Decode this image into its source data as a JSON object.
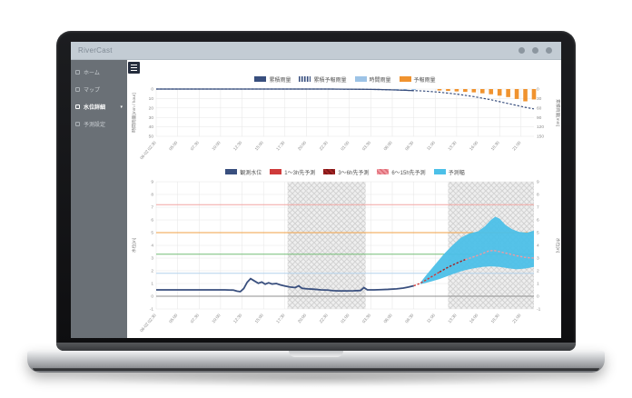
{
  "app": {
    "title": "RiverCast",
    "header_icons": [
      {
        "name": "user-icon"
      },
      {
        "name": "bell-icon"
      },
      {
        "name": "gear-icon"
      }
    ]
  },
  "sidebar": {
    "items": [
      {
        "label": "ホーム",
        "icon": "home-icon",
        "selected": false
      },
      {
        "label": "マップ",
        "icon": "map-icon",
        "selected": false
      },
      {
        "label": "水位詳細",
        "icon": "gauge-icon",
        "selected": true,
        "caret": "▾"
      },
      {
        "label": "予測設定",
        "icon": "wrench-icon",
        "selected": false
      }
    ]
  },
  "toolbar": {
    "menu_icon": "hamburger-icon"
  },
  "chart_data": [
    {
      "type": "bar",
      "name": "rainfall-chart",
      "x_domain": [
        0,
        44
      ],
      "x_tick_hours": [
        0,
        2.5,
        5,
        7.5,
        10,
        12.5,
        15,
        17.5,
        20,
        22.5,
        25,
        27.5,
        30,
        32.5,
        35,
        37.5,
        40,
        42.5
      ],
      "x_tick_labels": [
        "06-02 02:30",
        "05:00",
        "07:30",
        "10:00",
        "12:30",
        "15:00",
        "17:30",
        "20:00",
        "22:30",
        "01:00",
        "03:30",
        "06:00",
        "08:30",
        "11:00",
        "13:30",
        "16:00",
        "18:30",
        "21:00"
      ],
      "left_axis": {
        "label": "時間雨量[mm / hour]",
        "min": 0,
        "max": 50,
        "ticks": [
          0,
          10,
          20,
          30,
          40,
          50
        ],
        "inverted": true
      },
      "right_axis": {
        "label": "累積雨量[mm]",
        "min": 0,
        "max": 150,
        "ticks": [
          0,
          30,
          60,
          90,
          120,
          150
        ],
        "inverted": true
      },
      "legend": [
        {
          "label": "累積雨量",
          "color": "#394f7e",
          "pattern": "solid"
        },
        {
          "label": "累積予報雨量",
          "color": "#394f7e",
          "pattern": "dots"
        },
        {
          "label": "時間雨量",
          "color": "#9dc3e6",
          "pattern": "solid"
        },
        {
          "label": "予報雨量",
          "color": "#f0932f",
          "pattern": "solid"
        }
      ],
      "series": [
        {
          "name": "時間雨量",
          "kind": "bars",
          "axis": "left",
          "color": "#9dc3e6",
          "points": [
            [
              21,
              0.3
            ],
            [
              22,
              0.4
            ],
            [
              23,
              0.5
            ],
            [
              24,
              0.6
            ],
            [
              25,
              0.8
            ],
            [
              26,
              0.8
            ],
            [
              27,
              1.0
            ],
            [
              28,
              1.2
            ],
            [
              29,
              1.2
            ],
            [
              30,
              1.0
            ]
          ]
        },
        {
          "name": "予報雨量",
          "kind": "bars",
          "axis": "left",
          "color": "#f0932f",
          "points": [
            [
              33,
              1.5
            ],
            [
              34,
              2
            ],
            [
              35,
              2.5
            ],
            [
              36,
              3
            ],
            [
              37,
              3.5
            ],
            [
              38,
              4.5
            ],
            [
              39,
              5.5
            ],
            [
              40,
              7
            ],
            [
              41,
              8.5
            ],
            [
              42,
              10.5
            ],
            [
              43,
              13
            ],
            [
              44,
              11
            ]
          ]
        },
        {
          "name": "累積雨量",
          "kind": "line",
          "axis": "right",
          "style": "solid",
          "width": 1.2,
          "color": "#394f7e",
          "points": [
            [
              0,
              0
            ],
            [
              20,
              0
            ],
            [
              22,
              0.3
            ],
            [
              24,
              0.8
            ],
            [
              26,
              1.5
            ],
            [
              28,
              3
            ],
            [
              30,
              5
            ]
          ]
        },
        {
          "name": "累積予報雨量",
          "kind": "line",
          "axis": "right",
          "style": "dashed",
          "width": 1.2,
          "color": "#394f7e",
          "points": [
            [
              0,
              0
            ],
            [
              20,
              0
            ],
            [
              22,
              0.3
            ],
            [
              24,
              0.8
            ],
            [
              26,
              1.5
            ],
            [
              28,
              3
            ],
            [
              30,
              5
            ],
            [
              31,
              6
            ],
            [
              32,
              8
            ],
            [
              33,
              10
            ],
            [
              34,
              13
            ],
            [
              35,
              16
            ],
            [
              36,
              20
            ],
            [
              37,
              24
            ],
            [
              38,
              29
            ],
            [
              39,
              34
            ],
            [
              40,
              40
            ],
            [
              41,
              46
            ],
            [
              42,
              52
            ],
            [
              43,
              58
            ],
            [
              44,
              63
            ]
          ]
        }
      ]
    },
    {
      "type": "line",
      "name": "water-level-chart",
      "x_domain": [
        0,
        44
      ],
      "x_tick_hours": [
        0,
        2.5,
        5,
        7.5,
        10,
        12.5,
        15,
        17.5,
        20,
        22.5,
        25,
        27.5,
        30,
        32.5,
        35,
        37.5,
        40,
        42.5
      ],
      "x_tick_labels": [
        "06-02 02:30",
        "05:00",
        "07:30",
        "10:00",
        "12:30",
        "15:00",
        "17:30",
        "20:00",
        "22:30",
        "01:00",
        "03:30",
        "06:00",
        "08:30",
        "11:00",
        "13:30",
        "16:00",
        "18:30",
        "21:00"
      ],
      "left_axis": {
        "label": "水位[m]",
        "min": -1,
        "max": 9,
        "ticks": [
          -1,
          0,
          1,
          2,
          3,
          4,
          5,
          6,
          7,
          8,
          9
        ],
        "inverted": false
      },
      "right_axis": {
        "label": "水位[m]",
        "min": -1,
        "max": 9,
        "ticks": [
          -1,
          0,
          1,
          2,
          3,
          4,
          5,
          6,
          7,
          8,
          9
        ],
        "inverted": false
      },
      "bands": [
        [
          15.3,
          24.4
        ],
        [
          34,
          44
        ]
      ],
      "ref_lines": [
        {
          "value": 7.2,
          "color": "#f2a6a2"
        },
        {
          "value": 5.0,
          "color": "#f2a145"
        },
        {
          "value": 3.3,
          "color": "#74bd77"
        },
        {
          "value": 1.8,
          "color": "#b3d2ec"
        },
        {
          "value": 0,
          "color": "#8f8f8f"
        }
      ],
      "legend": [
        {
          "label": "観測水位",
          "color": "#394f7e",
          "pattern": "solid"
        },
        {
          "label": "1〜3h先予測",
          "color": "#cf3b3b",
          "pattern": "solid"
        },
        {
          "label": "3〜6h先予測",
          "color": "#a32424",
          "pattern": "hatch",
          "color2": "#7c1616"
        },
        {
          "label": "6〜15h先予測",
          "color": "#f09aa2",
          "pattern": "hatch",
          "color2": "#e06e79"
        },
        {
          "label": "予測幅",
          "color": "#4cc0e8",
          "pattern": "solid"
        }
      ],
      "series": [
        {
          "name": "予測幅",
          "kind": "area",
          "color": "#4cc0e8",
          "upper": [
            [
              30.8,
              1.1
            ],
            [
              31.5,
              1.7
            ],
            [
              32.5,
              2.5
            ],
            [
              33.5,
              3.3
            ],
            [
              34.5,
              4.0
            ],
            [
              35.5,
              4.6
            ],
            [
              36.5,
              4.95
            ],
            [
              37.5,
              5.1
            ],
            [
              38.3,
              5.5
            ],
            [
              39,
              6.0
            ],
            [
              39.5,
              6.25
            ],
            [
              40,
              6.1
            ],
            [
              40.7,
              5.6
            ],
            [
              41.5,
              5.25
            ],
            [
              42.3,
              5.05
            ],
            [
              43.2,
              5.0
            ],
            [
              44,
              5.15
            ]
          ],
          "lower": [
            [
              30.8,
              0.95
            ],
            [
              32,
              1.15
            ],
            [
              33,
              1.35
            ],
            [
              34,
              1.6
            ],
            [
              35,
              1.85
            ],
            [
              36,
              2.05
            ],
            [
              37,
              2.2
            ],
            [
              38,
              2.3
            ],
            [
              39,
              2.35
            ],
            [
              40,
              2.3
            ],
            [
              41,
              2.2
            ],
            [
              42,
              2.12
            ],
            [
              43,
              2.18
            ],
            [
              44,
              2.3
            ]
          ]
        },
        {
          "name": "観測水位",
          "kind": "line",
          "axis": "left",
          "style": "solid",
          "width": 1.8,
          "color": "#394f7e",
          "points": [
            [
              0,
              0.5
            ],
            [
              4,
              0.5
            ],
            [
              8,
              0.5
            ],
            [
              9,
              0.48
            ],
            [
              9.4,
              0.4
            ],
            [
              9.8,
              0.36
            ],
            [
              10.2,
              0.6
            ],
            [
              10.6,
              1.1
            ],
            [
              11,
              1.38
            ],
            [
              11.4,
              1.22
            ],
            [
              11.9,
              1.02
            ],
            [
              12.3,
              1.12
            ],
            [
              12.7,
              0.95
            ],
            [
              13.1,
              1.06
            ],
            [
              13.5,
              0.96
            ],
            [
              14,
              1.0
            ],
            [
              14.5,
              0.88
            ],
            [
              15,
              0.8
            ],
            [
              15.6,
              0.72
            ],
            [
              16.2,
              0.68
            ],
            [
              16.6,
              0.82
            ],
            [
              17,
              0.62
            ],
            [
              17.6,
              0.58
            ],
            [
              18.4,
              0.55
            ],
            [
              19.2,
              0.5
            ],
            [
              20,
              0.48
            ],
            [
              20.6,
              0.44
            ],
            [
              21.2,
              0.42
            ],
            [
              22,
              0.42
            ],
            [
              23,
              0.43
            ],
            [
              23.8,
              0.45
            ],
            [
              24.2,
              0.68
            ],
            [
              24.6,
              0.5
            ],
            [
              25.4,
              0.5
            ],
            [
              26.2,
              0.52
            ],
            [
              27,
              0.54
            ],
            [
              28,
              0.58
            ],
            [
              28.8,
              0.64
            ],
            [
              29.4,
              0.72
            ],
            [
              30,
              0.82
            ]
          ]
        },
        {
          "name": "1〜3h先予測",
          "kind": "line",
          "axis": "left",
          "style": "dashed",
          "width": 1.4,
          "color": "#cf3b3b",
          "points": [
            [
              30,
              0.82
            ],
            [
              30.7,
              1.0
            ],
            [
              31.5,
              1.3
            ],
            [
              32.3,
              1.62
            ],
            [
              33,
              1.9
            ]
          ]
        },
        {
          "name": "3〜6h先予測",
          "kind": "line",
          "axis": "left",
          "style": "dashed",
          "width": 1.4,
          "color": "#a32424",
          "points": [
            [
              33,
              1.9
            ],
            [
              34,
              2.28
            ],
            [
              35,
              2.6
            ],
            [
              36,
              2.88
            ]
          ]
        },
        {
          "name": "6〜15h先予測",
          "kind": "line",
          "axis": "left",
          "style": "dashed",
          "width": 1.4,
          "color": "#f09aa2",
          "points": [
            [
              36,
              2.88
            ],
            [
              37,
              3.1
            ],
            [
              38,
              3.35
            ],
            [
              38.7,
              3.55
            ],
            [
              39.3,
              3.6
            ],
            [
              40,
              3.5
            ],
            [
              41,
              3.35
            ],
            [
              42,
              3.18
            ],
            [
              43,
              3.05
            ],
            [
              44,
              3.0
            ]
          ]
        }
      ]
    }
  ]
}
